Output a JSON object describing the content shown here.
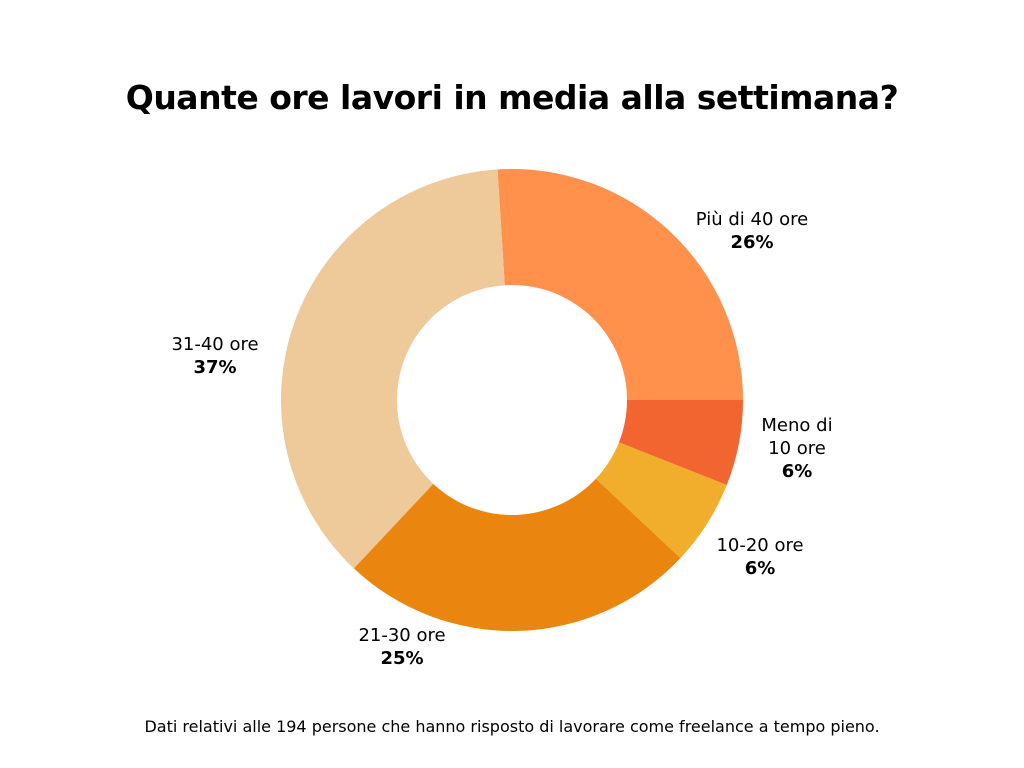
{
  "chart_data": {
    "type": "donut",
    "title": "Quante ore lavori in media alla settimana?",
    "categories": [
      "Più di 40 ore",
      "Meno di 10 ore",
      "10-20 ore",
      "21-30 ore",
      "31-40 ore"
    ],
    "values": [
      26,
      6,
      6,
      25,
      37
    ],
    "value_labels": [
      "26%",
      "6%",
      "6%",
      "25%",
      "37%"
    ],
    "colors": [
      "#ff914d",
      "#f26430",
      "#f0ae2c",
      "#ea860f",
      "#eec99a"
    ],
    "note": "Dati relativi alle 194 persone che hanno risposto di lavorare come freelance a tempo pieno."
  }
}
